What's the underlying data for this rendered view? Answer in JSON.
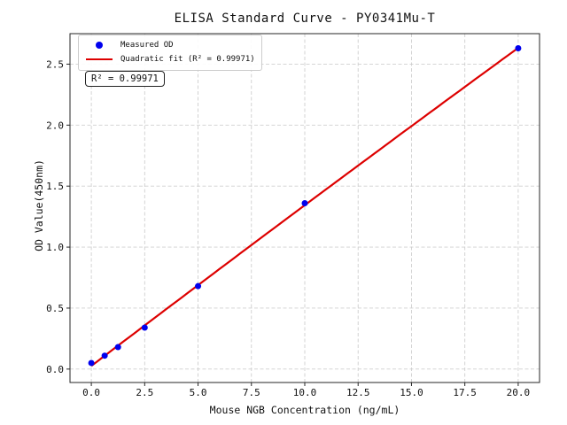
{
  "chart_data": {
    "type": "scatter",
    "title": "ELISA Standard Curve - PY0341Mu-T",
    "xlabel": "Mouse NGB Concentration (ng/mL)",
    "ylabel": "OD Value(450nm)",
    "x": [
      0,
      0.625,
      1.25,
      2.5,
      5,
      10,
      20
    ],
    "y": [
      0.05,
      0.11,
      0.18,
      0.34,
      0.68,
      1.36,
      2.63
    ],
    "series": [
      {
        "name": "Measured OD",
        "kind": "scatter",
        "color": "#0000ee"
      },
      {
        "name": "Quadratic fit (R² = 0.99971)",
        "kind": "quadratic-fit",
        "color": "#dd0000"
      }
    ],
    "fit": {
      "type": "quadratic",
      "r_squared": 0.99971
    },
    "annotation": "R² = 0.99971",
    "x_tick_values": [
      0,
      2.5,
      5,
      7.5,
      10,
      12.5,
      15,
      17.5,
      20
    ],
    "x_tick_labels": [
      "0.0",
      "2.5",
      "5.0",
      "7.5",
      "10.0",
      "12.5",
      "15.0",
      "17.5",
      "20.0"
    ],
    "y_tick_values": [
      0,
      0.5,
      1,
      1.5,
      2,
      2.5
    ],
    "y_tick_labels": [
      "0.0",
      "0.5",
      "1.0",
      "1.5",
      "2.0",
      "2.5"
    ],
    "xlim": [
      -1,
      21
    ],
    "ylim": [
      -0.11,
      2.75
    ],
    "grid": true,
    "legend_position": "upper left",
    "colors": {
      "marker": "#0000ee",
      "fit_line": "#dd0000",
      "grid": "#cfcfcf",
      "spine": "#262626",
      "background": "#ffffff"
    }
  }
}
